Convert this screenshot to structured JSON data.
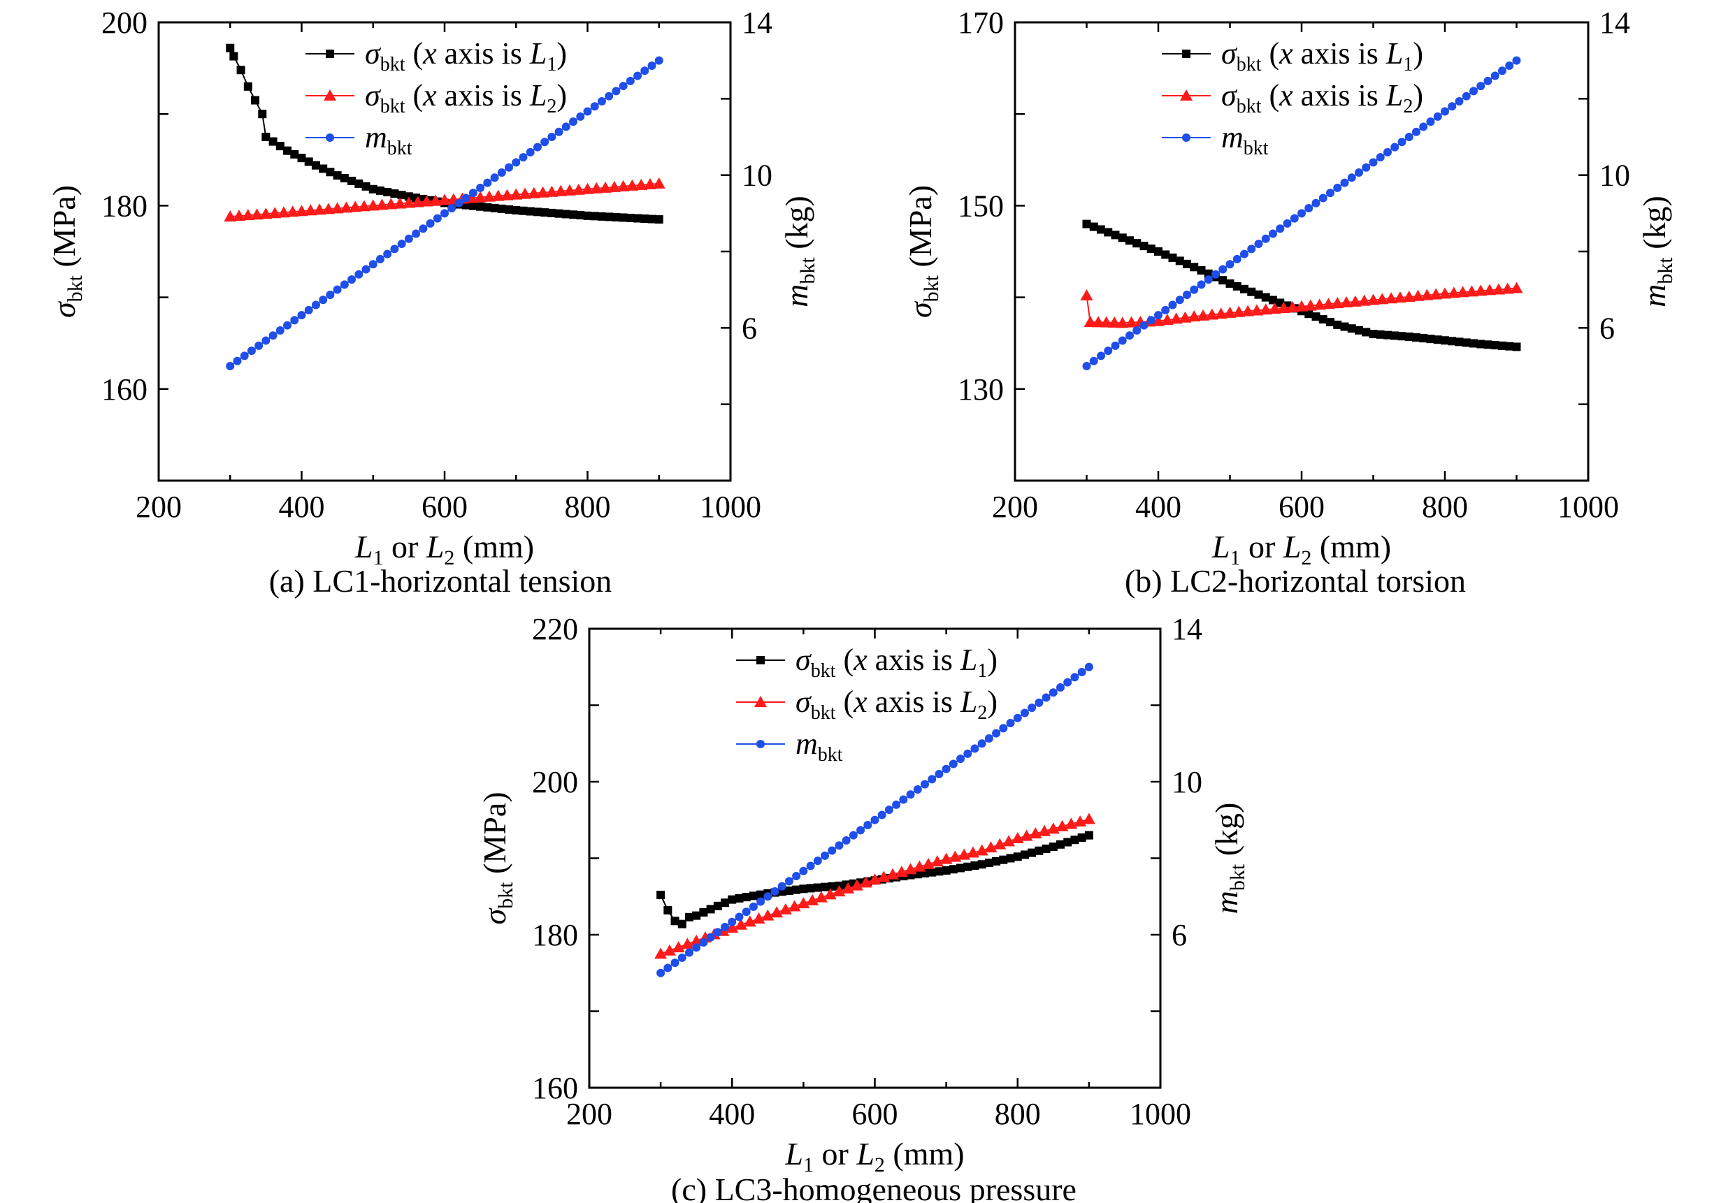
{
  "chart_data": [
    {
      "type": "line",
      "caption": "(a) LC1-horizontal tension",
      "xlabel": {
        "base": "L",
        "sub1": "1",
        "mid": " or ",
        "base2": "L",
        "sub2": "2",
        "unit": " (mm)"
      },
      "ylabel_left": {
        "sym": "σ",
        "sub": "bkt",
        "unit": " (MPa)"
      },
      "ylabel_right": {
        "sym": "m",
        "sub": "bkt",
        "unit": " (kg)"
      },
      "xlim": [
        200,
        1000
      ],
      "ylim_left": [
        150,
        200
      ],
      "ylim_right": [
        2,
        14
      ],
      "xticks": [
        "200",
        "400",
        "600",
        "800",
        "1000"
      ],
      "yticks_left": [
        "160",
        "180",
        "200"
      ],
      "yticks_right": [
        "6",
        "10",
        "14"
      ],
      "series": [
        {
          "name": "σbkt (x axis is L1)",
          "axis": "left",
          "color": "#000000",
          "marker": "square",
          "points": [
            [
              300,
              197.2
            ],
            [
              305,
              196.3
            ],
            [
              315,
              194.8
            ],
            [
              325,
              193.0
            ],
            [
              335,
              191.5
            ],
            [
              345,
              190.0
            ],
            [
              350,
              187.5
            ],
            [
              360,
              187.0
            ],
            [
              380,
              186.0
            ],
            [
              400,
              185.2
            ],
            [
              420,
              184.4
            ],
            [
              450,
              183.3
            ],
            [
              500,
              181.8
            ],
            [
              550,
              181.0
            ],
            [
              600,
              180.3
            ],
            [
              650,
              179.9
            ],
            [
              700,
              179.5
            ],
            [
              750,
              179.2
            ],
            [
              800,
              178.9
            ],
            [
              850,
              178.7
            ],
            [
              900,
              178.5
            ]
          ]
        },
        {
          "name": "σbkt (x axis is L2)",
          "axis": "left",
          "color": "#ff1a1a",
          "marker": "triangle",
          "points": [
            [
              300,
              178.8
            ],
            [
              400,
              179.4
            ],
            [
              500,
              180.0
            ],
            [
              600,
              180.6
            ],
            [
              700,
              181.2
            ],
            [
              800,
              181.8
            ],
            [
              900,
              182.4
            ]
          ]
        },
        {
          "name": "mbkt",
          "axis": "right",
          "color": "#1f4ee8",
          "marker": "circle",
          "points": [
            [
              300,
              5.0
            ],
            [
              900,
              13.0
            ]
          ]
        }
      ],
      "legend": [
        {
          "sym": "σ",
          "sub": "bkt",
          "pre": " (",
          "it": "x",
          "mid": " axis is ",
          "L": "L",
          "Lsub": "1",
          "post": ")"
        },
        {
          "sym": "σ",
          "sub": "bkt",
          "pre": " (",
          "it": "x",
          "mid": " axis is ",
          "L": "L",
          "Lsub": "2",
          "post": ")"
        },
        {
          "sym": "m",
          "sub": "bkt"
        }
      ]
    },
    {
      "type": "line",
      "caption": "(b) LC2-horizontal torsion",
      "xlabel": {
        "base": "L",
        "sub1": "1",
        "mid": " or ",
        "base2": "L",
        "sub2": "2",
        "unit": " (mm)"
      },
      "ylabel_left": {
        "sym": "σ",
        "sub": "bkt",
        "unit": " (MPa)"
      },
      "ylabel_right": {
        "sym": "m",
        "sub": "bkt",
        "unit": " (kg)"
      },
      "xlim": [
        200,
        1000
      ],
      "ylim_left": [
        120,
        170
      ],
      "ylim_right": [
        2,
        14
      ],
      "xticks": [
        "200",
        "400",
        "600",
        "800",
        "1000"
      ],
      "yticks_left": [
        "130",
        "150",
        "170"
      ],
      "yticks_right": [
        "6",
        "10",
        "14"
      ],
      "series": [
        {
          "name": "σbkt (x axis is L1)",
          "axis": "left",
          "color": "#000000",
          "marker": "square",
          "points": [
            [
              300,
              148.0
            ],
            [
              350,
              146.5
            ],
            [
              400,
              145.0
            ],
            [
              450,
              143.3
            ],
            [
              500,
              141.5
            ],
            [
              550,
              140.0
            ],
            [
              600,
              138.5
            ],
            [
              650,
              137.0
            ],
            [
              700,
              136.0
            ],
            [
              750,
              135.7
            ],
            [
              800,
              135.3
            ],
            [
              850,
              134.9
            ],
            [
              900,
              134.6
            ]
          ]
        },
        {
          "name": "σbkt (x axis is L2)",
          "axis": "left",
          "color": "#ff1a1a",
          "marker": "triangle",
          "points": [
            [
              300,
              140.2
            ],
            [
              305,
              137.3
            ],
            [
              350,
              137.2
            ],
            [
              400,
              137.4
            ],
            [
              450,
              137.9
            ],
            [
              500,
              138.3
            ],
            [
              600,
              139.0
            ],
            [
              700,
              139.7
            ],
            [
              800,
              140.4
            ],
            [
              900,
              141.0
            ]
          ]
        },
        {
          "name": "mbkt",
          "axis": "right",
          "color": "#1f4ee8",
          "marker": "circle",
          "points": [
            [
              300,
              5.0
            ],
            [
              900,
              13.0
            ]
          ]
        }
      ],
      "legend": [
        {
          "sym": "σ",
          "sub": "bkt",
          "pre": " (",
          "it": "x",
          "mid": " axis is ",
          "L": "L",
          "Lsub": "1",
          "post": ")"
        },
        {
          "sym": "σ",
          "sub": "bkt",
          "pre": " (",
          "it": "x",
          "mid": " axis is ",
          "L": "L",
          "Lsub": "2",
          "post": ")"
        },
        {
          "sym": "m",
          "sub": "bkt"
        }
      ]
    },
    {
      "type": "line",
      "caption": "(c) LC3-homogeneous pressure",
      "xlabel": {
        "base": "L",
        "sub1": "1",
        "mid": " or ",
        "base2": "L",
        "sub2": "2",
        "unit": " (mm)"
      },
      "ylabel_left": {
        "sym": "σ",
        "sub": "bkt",
        "unit": " (MPa)"
      },
      "ylabel_right": {
        "sym": "m",
        "sub": "bkt",
        "unit": " (kg)"
      },
      "xlim": [
        200,
        1000
      ],
      "ylim_left": [
        160,
        220
      ],
      "ylim_right": [
        2,
        14
      ],
      "xticks": [
        "200",
        "400",
        "600",
        "800",
        "1000"
      ],
      "yticks_left": [
        "160",
        "180",
        "200",
        "220"
      ],
      "yticks_right": [
        "6",
        "10",
        "14"
      ],
      "series": [
        {
          "name": "σbkt (x axis is L1)",
          "axis": "left",
          "color": "#000000",
          "marker": "square",
          "points": [
            [
              300,
              185.2
            ],
            [
              310,
              183.2
            ],
            [
              320,
              181.8
            ],
            [
              330,
              181.4
            ],
            [
              340,
              182.3
            ],
            [
              350,
              182.5
            ],
            [
              400,
              184.6
            ],
            [
              450,
              185.4
            ],
            [
              500,
              186.0
            ],
            [
              550,
              186.4
            ],
            [
              600,
              187.1
            ],
            [
              650,
              187.8
            ],
            [
              700,
              188.4
            ],
            [
              750,
              189.2
            ],
            [
              800,
              190.2
            ],
            [
              850,
              191.5
            ],
            [
              900,
              193.0
            ]
          ]
        },
        {
          "name": "σbkt (x axis is L2)",
          "axis": "left",
          "color": "#ff1a1a",
          "marker": "triangle",
          "points": [
            [
              300,
              177.5
            ],
            [
              400,
              180.9
            ],
            [
              500,
              184.1
            ],
            [
              600,
              187.2
            ],
            [
              700,
              189.9
            ],
            [
              750,
              191.0
            ],
            [
              800,
              192.6
            ],
            [
              900,
              195.1
            ]
          ]
        },
        {
          "name": "mbkt",
          "axis": "right",
          "color": "#1f4ee8",
          "marker": "circle",
          "points": [
            [
              300,
              5.0
            ],
            [
              900,
              13.0
            ]
          ]
        }
      ],
      "legend": [
        {
          "sym": "σ",
          "sub": "bkt",
          "pre": " (",
          "it": "x",
          "mid": " axis is ",
          "L": "L",
          "Lsub": "1",
          "post": ")"
        },
        {
          "sym": "σ",
          "sub": "bkt",
          "pre": " (",
          "it": "x",
          "mid": " axis is ",
          "L": "L",
          "Lsub": "2",
          "post": ")"
        },
        {
          "sym": "m",
          "sub": "bkt"
        }
      ]
    }
  ]
}
